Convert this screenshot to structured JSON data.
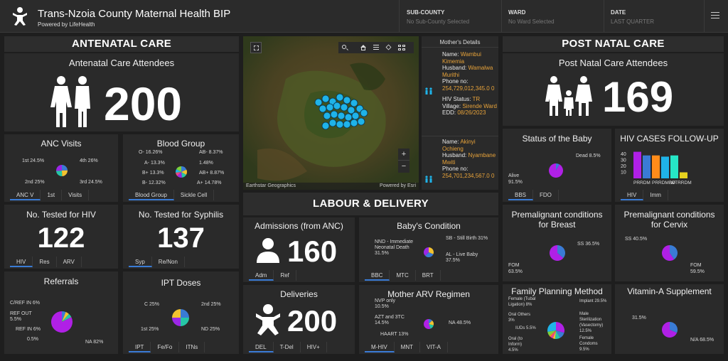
{
  "header": {
    "title": "Trans-Nzoia County Maternal Health BIP",
    "powered": "Powered by LifeHealth",
    "subcounty_label": "SUB-COUNTY",
    "subcounty_value": "No Sub-County Selected",
    "ward_label": "WARD",
    "ward_value": "No Ward Selected",
    "date_label": "DATE",
    "date_value": "LAST QUARTER"
  },
  "antenatal": {
    "section_title": "ANTENATAL CARE",
    "attendees_title": "Antenatal Care Attendees",
    "attendees_value": "200",
    "anc_title": "ANC Visits",
    "anc_labels": [
      "1st 24.5%",
      "4th 26%",
      "2nd 25%",
      "3rd 24.5%"
    ],
    "anc_tabs": [
      "ANC V",
      "1st",
      "Visits"
    ],
    "blood_title": "Blood Group",
    "blood_labels": [
      "O- 16.26%",
      "A- 13.3%",
      "B+ 13.3%",
      "B- 12.32%",
      "AB- 8.37%",
      "1.48%",
      "AB+ 8.87%",
      "A+ 14.78%"
    ],
    "blood_tabs": [
      "Blood Group",
      "Sickle Cell"
    ],
    "hiv_title": "No. Tested for HIV",
    "hiv_value": "122",
    "hiv_tabs": [
      "HIV",
      "Res",
      "ARV"
    ],
    "syph_title": "No. Tested for Syphilis",
    "syph_value": "137",
    "syph_tabs": [
      "Syp",
      "Re/Non"
    ],
    "ref_title": "Referrals",
    "ref_labels": [
      "C/REF IN 6%",
      "REF OUT 5.5%",
      "REF IN 6%",
      "0.5%",
      "NA 82%"
    ],
    "ipt_title": "IPT Doses",
    "ipt_labels": [
      "C 25%",
      "2nd 25%",
      "1st 25%",
      "ND 25%"
    ],
    "ipt_tabs": [
      "IPT",
      "Fe/Fo",
      "ITNs"
    ]
  },
  "map": {
    "attribution": "Earthstar Geographics",
    "powered": "Powered by Esri",
    "zoom_in": "+",
    "zoom_out": "−"
  },
  "mother_details": {
    "title": "Mother's Details",
    "m1": {
      "name_label": "Name:",
      "name": "Wambui Kimemia",
      "husband_label": "Husband:",
      "husband": "Wamalwa Murithi",
      "phone_label": "Phone no:",
      "phone": "254,729,012,345.0 0",
      "hiv_label": "HIV Status:",
      "hiv": "TR",
      "village_label": "Village:",
      "village": "Sirende Ward",
      "edd_label": "EDD:",
      "edd": "08/26/2023"
    },
    "m2": {
      "name_label": "Name:",
      "name": "Akinyi Ochieng",
      "husband_label": "Husband:",
      "husband": "Nyambane Mwiti",
      "phone_label": "Phone no:",
      "phone": "254,701,234,567.0 0"
    }
  },
  "labour": {
    "section_title": "LABOUR & DELIVERY",
    "adm_title": "Admissions (from ANC)",
    "adm_value": "160",
    "adm_tabs": [
      "Adm",
      "Ref"
    ],
    "baby_title": "Baby's Condition",
    "baby_labels": [
      "NND - Immediate Neonatal Death 31.5%",
      "SB - Still Birth 31%",
      "AL - Live Baby 37.5%"
    ],
    "baby_tabs": [
      "BBC",
      "MTC",
      "BRT"
    ],
    "del_title": "Deliveries",
    "del_value": "200",
    "del_tabs": [
      "DEL",
      "T-Del",
      "HIV+"
    ],
    "arv_title": "Mother ARV Regimen",
    "arv_labels": [
      "NVP only 10.5%",
      "AZT and 3TC 14.5%",
      "HAART 13%",
      "NA 48.5%"
    ],
    "arv_tabs": [
      "M-HIV",
      "MNT",
      "VIT-A"
    ]
  },
  "postnatal": {
    "section_title": "POST NATAL CARE",
    "attendees_title": "Post Natal Care Attendees",
    "attendees_value": "169",
    "baby_status_title": "Status of the Baby",
    "baby_status_labels": [
      "Dead 8.5%",
      "Alive 91.5%"
    ],
    "baby_status_tabs": [
      "BBS",
      "FDO"
    ],
    "hiv_follow_title": "HIV CASES FOLLOW-UP",
    "hiv_follow_tabs": [
      "HIV",
      "Imm"
    ],
    "breast_title": "Premalignant conditions for Breast",
    "breast_labels": [
      "SS 36.5%",
      "FOM 63.5%"
    ],
    "cervix_title": "Premalignant conditions for Cervix",
    "cervix_labels": [
      "SS 40.5%",
      "FOM 59.5%"
    ],
    "fp_title": "Family Planning Method",
    "fp_labels": [
      "Female (Tubal Ligation) 8%",
      "Oral Others 3%",
      "IUDs 5.5%",
      "Oral (to Inform) 4.5%",
      "Implant 29.5%",
      "Male Sterilization (Vasectomy) 12.5%",
      "Female Condoms 9.5%"
    ],
    "vita_title": "Vitamin-A Supplement",
    "vita_labels": [
      "31.5%",
      "N/A 68.5%"
    ]
  },
  "chart_data": [
    {
      "type": "pie",
      "title": "ANC Visits",
      "categories": [
        "1st",
        "2nd",
        "3rd",
        "4th"
      ],
      "values": [
        24.5,
        25,
        24.5,
        26
      ],
      "colors": [
        "#3a7bd5",
        "#f2c230",
        "#26c6a6",
        "#9b27e6"
      ]
    },
    {
      "type": "pie",
      "title": "Blood Group",
      "categories": [
        "O-",
        "A-",
        "B+",
        "B-",
        "AB-",
        "",
        "AB+",
        "A+"
      ],
      "values": [
        16.26,
        13.3,
        13.3,
        12.32,
        8.37,
        1.48,
        8.87,
        14.78
      ],
      "colors": [
        "#3a7bd5",
        "#f2c230",
        "#26c6a6",
        "#9b27e6",
        "#e84393",
        "#ff8c1a",
        "#1fb3e8",
        "#7bd13a"
      ]
    },
    {
      "type": "pie",
      "title": "Referrals",
      "categories": [
        "C/REF IN",
        "REF OUT",
        "REF IN",
        "",
        "NA"
      ],
      "values": [
        6,
        5.5,
        6,
        0.5,
        82
      ],
      "colors": [
        "#3a7bd5",
        "#f2c230",
        "#26c6a6",
        "#e84393",
        "#b020e6"
      ]
    },
    {
      "type": "pie",
      "title": "IPT Doses",
      "categories": [
        "C",
        "2nd",
        "ND",
        "1st"
      ],
      "values": [
        25,
        25,
        25,
        25
      ],
      "colors": [
        "#3a7bd5",
        "#26c6a6",
        "#9b27e6",
        "#f2c230"
      ]
    },
    {
      "type": "pie",
      "title": "Baby's Condition",
      "categories": [
        "NND",
        "SB",
        "AL"
      ],
      "values": [
        31.5,
        31,
        37.5
      ],
      "colors": [
        "#f2c230",
        "#3a7bd5",
        "#9b27e6"
      ]
    },
    {
      "type": "pie",
      "title": "Mother ARV Regimen",
      "categories": [
        "NVP only",
        "AZT and 3TC",
        "HAART",
        "NA"
      ],
      "values": [
        10.5,
        14.5,
        13,
        48.5
      ],
      "colors": [
        "#3a7bd5",
        "#f2c230",
        "#26c6a6",
        "#b020e6"
      ]
    },
    {
      "type": "pie",
      "title": "Status of the Baby",
      "categories": [
        "Dead",
        "Alive"
      ],
      "values": [
        8.5,
        91.5
      ],
      "colors": [
        "#3a7bd5",
        "#b020e6"
      ]
    },
    {
      "type": "bar",
      "title": "HIV CASES FOLLOW-UP",
      "categories": [
        "PRRDM",
        "",
        "PRRDMBD",
        "",
        "WTRRDM",
        ""
      ],
      "values": [
        44,
        38,
        38,
        36,
        38,
        10
      ],
      "colors": [
        "#b020e6",
        "#3a7bd5",
        "#ff8c1a",
        "#1fb3e8",
        "#26e6c6",
        "#e6d21f"
      ],
      "ylim": [
        0,
        40
      ],
      "yticks": [
        10,
        20,
        30,
        40
      ]
    },
    {
      "type": "pie",
      "title": "Premalignant conditions for Breast",
      "categories": [
        "SS",
        "FOM"
      ],
      "values": [
        36.5,
        63.5
      ],
      "colors": [
        "#3a7bd5",
        "#b020e6"
      ]
    },
    {
      "type": "pie",
      "title": "Premalignant conditions for Cervix",
      "categories": [
        "SS",
        "FOM"
      ],
      "values": [
        40.5,
        59.5
      ],
      "colors": [
        "#3a7bd5",
        "#b020e6"
      ]
    },
    {
      "type": "pie",
      "title": "Family Planning Method",
      "categories": [
        "Implant",
        "Male Sterilization",
        "Female Condoms",
        "Oral (to Inform)",
        "IUDs",
        "Oral Others",
        "Female (Tubal Ligation)",
        ""
      ],
      "values": [
        29.5,
        12.5,
        9.5,
        4.5,
        5.5,
        3,
        8,
        27.5
      ],
      "colors": [
        "#b020e6",
        "#3a7bd5",
        "#26c6a6",
        "#f2c230",
        "#e84393",
        "#ff8c1a",
        "#7bd13a",
        "#1fb3e8"
      ]
    },
    {
      "type": "pie",
      "title": "Vitamin-A Supplement",
      "categories": [
        "",
        "N/A"
      ],
      "values": [
        31.5,
        68.5
      ],
      "colors": [
        "#3a7bd5",
        "#b020e6"
      ]
    }
  ]
}
